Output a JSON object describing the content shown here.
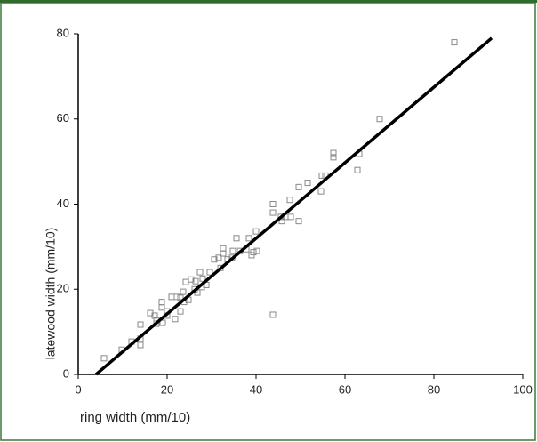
{
  "chart_data": {
    "type": "scatter",
    "xlabel": "ring width (mm/10)",
    "ylabel": "latewood width (mm/10)",
    "xlim": [
      0,
      100
    ],
    "ylim": [
      0,
      80
    ],
    "xticks": [
      0,
      20,
      40,
      60,
      80,
      100
    ],
    "yticks": [
      0,
      20,
      40,
      60,
      80
    ],
    "color": "#888888",
    "line_color": "#000000",
    "x": [
      84.6,
      67.8,
      63.2,
      57.4,
      57.4,
      62.8,
      54.8,
      55.6,
      51.6,
      49.6,
      54.6,
      47.6,
      43.8,
      43.8,
      45.6,
      46.6,
      47.8,
      49.6,
      45.8,
      43.8,
      40.2,
      39.4,
      40,
      38.4,
      35.6,
      36.4,
      34.8,
      37.8,
      39,
      32.6,
      32.6,
      34.6,
      31.6,
      30.6,
      33.6,
      32,
      29.6,
      27.4,
      28,
      25.4,
      24.2,
      26.4,
      28.8,
      27.8,
      26.2,
      26.8,
      23.6,
      22.2,
      21,
      23,
      23.8,
      18.8,
      18.8,
      23,
      21.8,
      17.2,
      17.6,
      19,
      17.6,
      14,
      14,
      14,
      12,
      9.8,
      5.8,
      16.2,
      20,
      20,
      24.8
    ],
    "values": [
      78,
      60,
      51.8,
      52,
      51,
      48,
      46.7,
      46.7,
      45,
      44,
      43,
      41,
      40,
      38,
      37,
      37,
      37,
      36,
      36,
      14,
      29,
      28.7,
      33.6,
      32,
      32,
      29,
      29,
      29.4,
      28,
      29.6,
      28.4,
      27.4,
      27.4,
      27,
      27,
      25,
      24,
      24,
      22.5,
      22.3,
      21.7,
      21.9,
      21,
      20.5,
      20,
      19.2,
      19.4,
      18.2,
      18.2,
      18,
      17,
      17,
      15.7,
      14.8,
      13,
      13.8,
      12.7,
      12.1,
      11.9,
      11.7,
      8.4,
      6.9,
      7.7,
      5.8,
      3.8,
      14.4,
      13.8,
      14.8,
      17.5
    ],
    "fit_line": {
      "x": [
        4,
        93
      ],
      "values": [
        0,
        79
      ]
    }
  }
}
